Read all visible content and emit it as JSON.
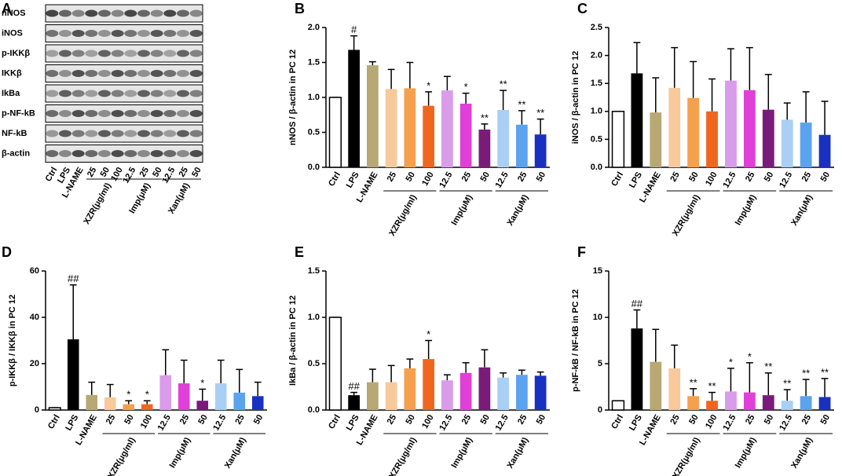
{
  "blot": {
    "panel": "A",
    "proteins": [
      "nNOS",
      "iNOS",
      "p-IKKβ",
      "IKKβ",
      "IkBa",
      "p-NF-kB",
      "NF-kB",
      "β-actin"
    ],
    "lanes": [
      "Ctrl",
      "LPS",
      "L-NAME",
      "25",
      "50",
      "100",
      "12.5",
      "25",
      "50",
      "12.5",
      "25",
      "50"
    ],
    "lane_groups": [
      null,
      null,
      null,
      "XZR(μg/ml)",
      "XZR(μg/ml)",
      "XZR(μg/ml)",
      "Imp(μM)",
      "Imp(μM)",
      "Imp(μM)",
      "Xan(μM)",
      "Xan(μM)",
      "Xan(μM)"
    ]
  },
  "chart_data": [
    {
      "type": "bar",
      "panel": "B",
      "ylabel": "nNOS / β-actin in PC 12",
      "categories": [
        "Ctrl",
        "LPS",
        "L-NAME",
        "25",
        "50",
        "100",
        "12.5",
        "25",
        "50",
        "12.5",
        "25",
        "50"
      ],
      "category_groups": [
        null,
        null,
        null,
        "XZR(μg/ml)",
        "XZR(μg/ml)",
        "XZR(μg/ml)",
        "Imp(μM)",
        "Imp(μM)",
        "Imp(μM)",
        "Xan(μM)",
        "Xan(μM)",
        "Xan(μM)"
      ],
      "values": [
        1.0,
        1.68,
        1.46,
        1.12,
        1.13,
        0.88,
        1.1,
        0.91,
        0.54,
        0.82,
        0.61,
        0.47
      ],
      "errors": [
        0,
        0.2,
        0.05,
        0.28,
        0.37,
        0.2,
        0.2,
        0.15,
        0.08,
        0.28,
        0.2,
        0.22
      ],
      "annotations": [
        null,
        "#",
        null,
        null,
        null,
        "*",
        null,
        "*",
        "**",
        "**",
        "**",
        "**"
      ],
      "colors": [
        "#ffffff",
        "#000000",
        "#b8a874",
        "#f8c99c",
        "#f5a04c",
        "#f0661e",
        "#d89cea",
        "#e040d8",
        "#7a1b7a",
        "#a9cff5",
        "#5ba3ef",
        "#1a30c0"
      ],
      "ylim": [
        0,
        2.0
      ],
      "yticks": [
        {
          "value": 0,
          "label": "0.0"
        },
        {
          "value": 0.5,
          "label": "0.5"
        },
        {
          "value": 1.0,
          "label": "1.0"
        },
        {
          "value": 1.5,
          "label": "1.5"
        },
        {
          "value": 2.0,
          "label": "2.0"
        }
      ]
    },
    {
      "type": "bar",
      "panel": "C",
      "ylabel": "iNOS / β-actin in PC 12",
      "categories": [
        "Ctrl",
        "LPS",
        "L-NAME",
        "25",
        "50",
        "100",
        "12.5",
        "25",
        "50",
        "12.5",
        "25",
        "50"
      ],
      "category_groups": [
        null,
        null,
        null,
        "XZR(μg/ml)",
        "XZR(μg/ml)",
        "XZR(μg/ml)",
        "Imp(μM)",
        "Imp(μM)",
        "Imp(μM)",
        "Xan(μM)",
        "Xan(μM)",
        "Xan(μM)"
      ],
      "values": [
        1.0,
        1.68,
        0.98,
        1.42,
        1.24,
        1.0,
        1.55,
        1.38,
        1.03,
        0.85,
        0.8,
        0.58
      ],
      "errors": [
        0,
        0.55,
        0.62,
        0.72,
        0.65,
        0.58,
        0.57,
        0.76,
        0.63,
        0.3,
        0.55,
        0.6
      ],
      "annotations": [
        null,
        null,
        null,
        null,
        null,
        null,
        null,
        null,
        null,
        null,
        null,
        null
      ],
      "colors": [
        "#ffffff",
        "#000000",
        "#b8a874",
        "#f8c99c",
        "#f5a04c",
        "#f0661e",
        "#d89cea",
        "#e040d8",
        "#7a1b7a",
        "#a9cff5",
        "#5ba3ef",
        "#1a30c0"
      ],
      "ylim": [
        0,
        2.5
      ],
      "yticks": [
        {
          "value": 0,
          "label": "0.0"
        },
        {
          "value": 0.5,
          "label": "0.5"
        },
        {
          "value": 1.0,
          "label": "1.0"
        },
        1.5,
        {
          "value": 2.0,
          "label": "2.0"
        },
        2.5
      ]
    },
    {
      "type": "bar",
      "panel": "D",
      "ylabel": "p-IKKβ / IKKβ in PC 12",
      "categories": [
        "Ctrl",
        "LPS",
        "L-NAME",
        "25",
        "50",
        "100",
        "12.5",
        "25",
        "50",
        "12.5",
        "25",
        "50"
      ],
      "category_groups": [
        null,
        null,
        null,
        "XZR(μg/ml)",
        "XZR(μg/ml)",
        "XZR(μg/ml)",
        "Imp(μM)",
        "Imp(μM)",
        "Imp(μM)",
        "Xan(μM)",
        "Xan(μM)",
        "Xan(μM)"
      ],
      "values": [
        1,
        30.5,
        6.5,
        5.5,
        2.5,
        2.5,
        15,
        11.5,
        4,
        11.5,
        7.5,
        6
      ],
      "errors": [
        0,
        23.5,
        5.5,
        5.5,
        1.5,
        1.5,
        11,
        10,
        5,
        10,
        10,
        6
      ],
      "annotations": [
        null,
        "##",
        null,
        null,
        "*",
        "*",
        null,
        null,
        "*",
        null,
        null,
        null
      ],
      "colors": [
        "#ffffff",
        "#000000",
        "#b8a874",
        "#f8c99c",
        "#f5a04c",
        "#f0661e",
        "#d89cea",
        "#e040d8",
        "#7a1b7a",
        "#a9cff5",
        "#5ba3ef",
        "#1a30c0"
      ],
      "ylim": [
        0,
        60
      ],
      "yticks": [
        0,
        20,
        40,
        60
      ]
    },
    {
      "type": "bar",
      "panel": "E",
      "ylabel": "IkBa / β-actin in PC 12",
      "categories": [
        "Ctrl",
        "LPS",
        "L-NAME",
        "25",
        "50",
        "100",
        "12.5",
        "25",
        "50",
        "12.5",
        "25",
        "50"
      ],
      "category_groups": [
        null,
        null,
        null,
        "XZR(μg/ml)",
        "XZR(μg/ml)",
        "XZR(μg/ml)",
        "Imp(μM)",
        "Imp(μM)",
        "Imp(μM)",
        "Xan(μM)",
        "Xan(μM)",
        "Xan(μM)"
      ],
      "values": [
        1.0,
        0.16,
        0.3,
        0.3,
        0.45,
        0.55,
        0.32,
        0.4,
        0.46,
        0.35,
        0.38,
        0.37
      ],
      "errors": [
        0,
        0.03,
        0.14,
        0.18,
        0.1,
        0.2,
        0.06,
        0.11,
        0.19,
        0.05,
        0.05,
        0.04
      ],
      "annotations": [
        null,
        "##",
        null,
        null,
        null,
        "*",
        null,
        null,
        null,
        null,
        null,
        null
      ],
      "colors": [
        "#ffffff",
        "#000000",
        "#b8a874",
        "#f8c99c",
        "#f5a04c",
        "#f0661e",
        "#d89cea",
        "#e040d8",
        "#7a1b7a",
        "#a9cff5",
        "#5ba3ef",
        "#1a30c0"
      ],
      "ylim": [
        0,
        1.5
      ],
      "yticks": [
        {
          "value": 0,
          "label": "0.0"
        },
        {
          "value": 0.5,
          "label": "0.5"
        },
        {
          "value": 1.0,
          "label": "1.0"
        },
        1.5
      ]
    },
    {
      "type": "bar",
      "panel": "F",
      "ylabel": "p-NF-kB / NF-kB in PC 12",
      "categories": [
        "Ctrl",
        "LPS",
        "L-NAME",
        "25",
        "50",
        "100",
        "12.5",
        "25",
        "50",
        "12.5",
        "25",
        "50"
      ],
      "category_groups": [
        null,
        null,
        null,
        "XZR(μg/ml)",
        "XZR(μg/ml)",
        "XZR(μg/ml)",
        "Imp(μM)",
        "Imp(μM)",
        "Imp(μM)",
        "Xan(μM)",
        "Xan(μM)",
        "Xan(μM)"
      ],
      "values": [
        1,
        8.8,
        5.2,
        4.5,
        1.5,
        1.0,
        2.0,
        1.9,
        1.6,
        1.0,
        1.5,
        1.4
      ],
      "errors": [
        0,
        2.0,
        3.5,
        2.5,
        0.8,
        0.9,
        2.5,
        3.2,
        2.4,
        1.2,
        1.8,
        2.0
      ],
      "annotations": [
        null,
        "##",
        null,
        null,
        "**",
        "**",
        "*",
        "*",
        "**",
        "**",
        "**",
        "**"
      ],
      "colors": [
        "#ffffff",
        "#000000",
        "#b8a874",
        "#f8c99c",
        "#f5a04c",
        "#f0661e",
        "#d89cea",
        "#e040d8",
        "#7a1b7a",
        "#a9cff5",
        "#5ba3ef",
        "#1a30c0"
      ],
      "ylim": [
        0,
        15
      ],
      "yticks": [
        0,
        5,
        10,
        15
      ]
    }
  ]
}
